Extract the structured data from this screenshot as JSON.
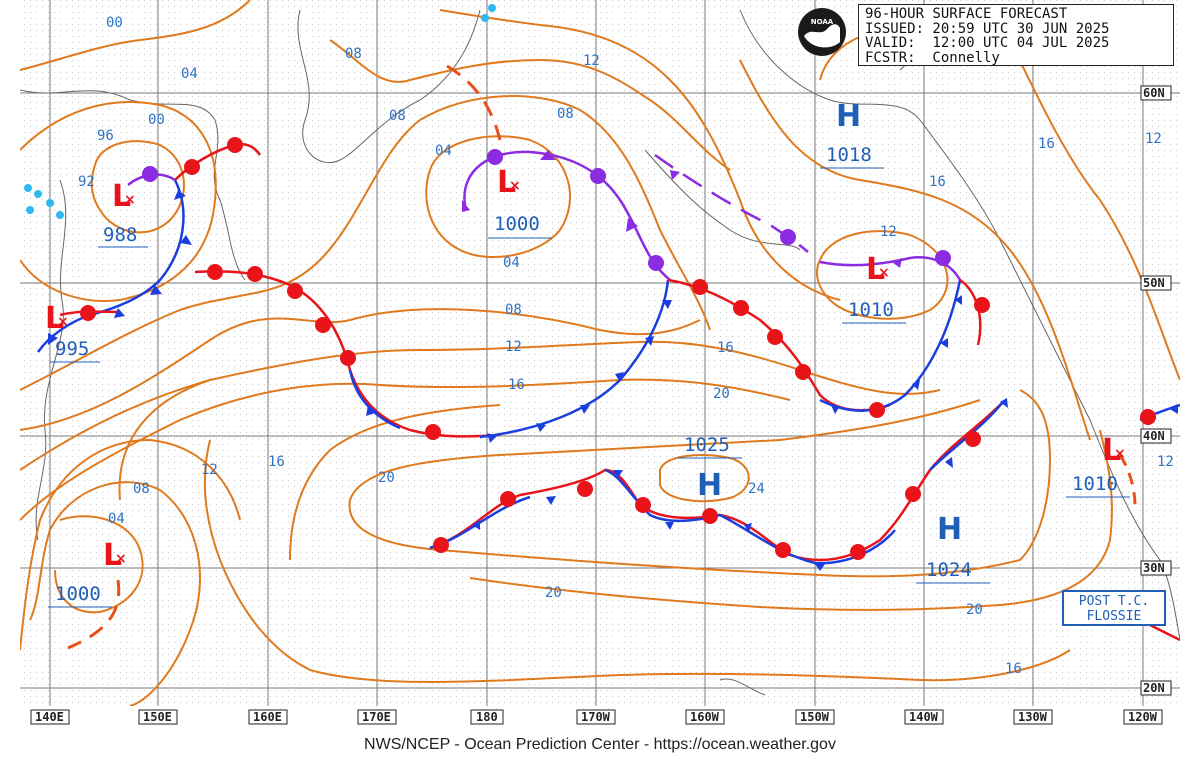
{
  "header": {
    "title": "96-HOUR SURFACE FORECAST",
    "issued": "ISSUED: 20:59 UTC 30 JUN 2025",
    "valid": "VALID:  12:00 UTC 04 JUL 2025",
    "forecaster": "FCSTR:  Connelly"
  },
  "logo_text": "NOAA",
  "credit": "NWS/NCEP - Ocean Prediction Center - https://ocean.weather.gov",
  "post_tc": {
    "line1": "POST T.C.",
    "line2": "FLOSSIE"
  },
  "longitudes": [
    "140E",
    "150E",
    "160E",
    "170E",
    "180",
    "170W",
    "160W",
    "150W",
    "140W",
    "130W",
    "120W"
  ],
  "latitudes": [
    "60N",
    "50N",
    "40N",
    "30N",
    "20N"
  ],
  "systems": [
    {
      "type": "L",
      "pressure": "988"
    },
    {
      "type": "L",
      "pressure": "995"
    },
    {
      "type": "L",
      "pressure": "1000"
    },
    {
      "type": "L",
      "pressure": "1000"
    },
    {
      "type": "L",
      "pressure": "1010"
    },
    {
      "type": "L",
      "pressure": "1010"
    },
    {
      "type": "H",
      "pressure": "1018"
    },
    {
      "type": "H",
      "pressure": "1025"
    },
    {
      "type": "H",
      "pressure": "1024"
    }
  ],
  "isobar_labels": [
    "00",
    "04",
    "08",
    "12",
    "96",
    "92",
    "00",
    "08",
    "04",
    "08",
    "12",
    "16",
    "12",
    "16",
    "04",
    "08",
    "12",
    "16",
    "20",
    "24",
    "20",
    "16",
    "20",
    "12",
    "16",
    "08",
    "04",
    "12",
    "16",
    "20"
  ],
  "colors": {
    "isobar": "#e07a1f",
    "cold_front": "#1a3ee0",
    "warm_front": "#e8141a",
    "occluded": "#8b2be2",
    "low": "#e8141a",
    "high": "#1f5fb8"
  }
}
